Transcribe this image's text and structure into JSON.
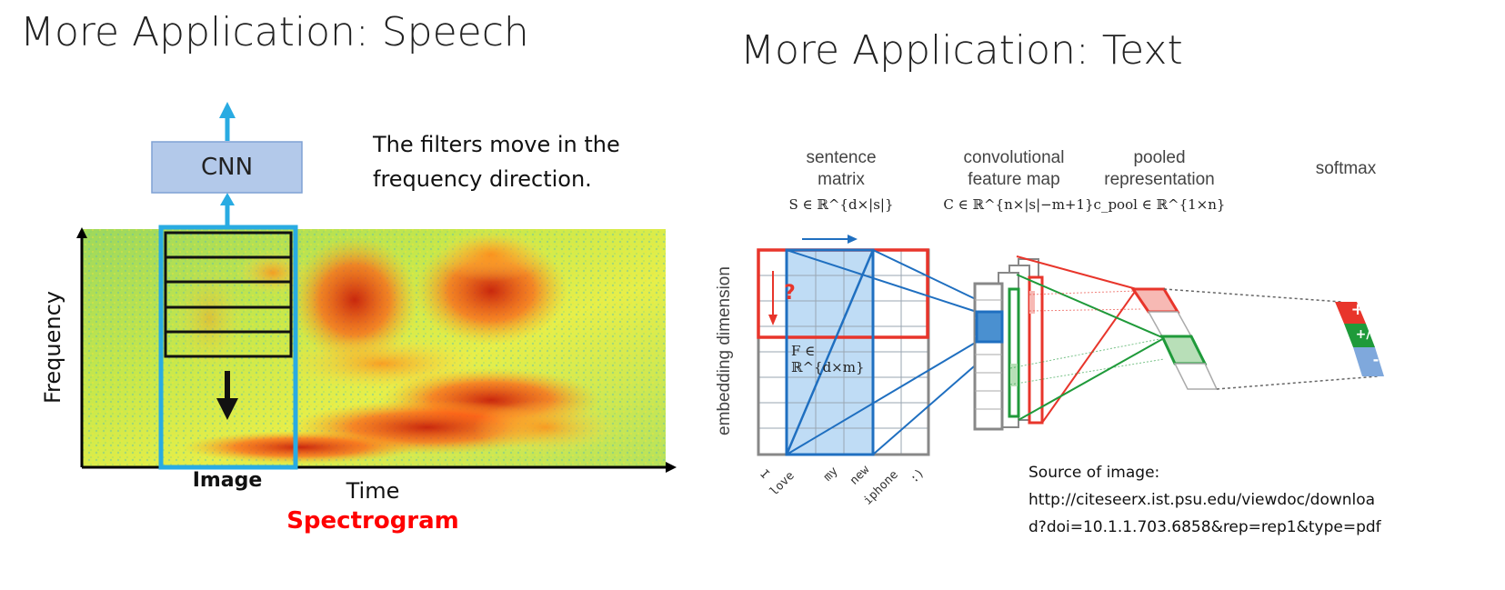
{
  "left": {
    "title": "More Application: Speech",
    "cnn_label": "CNN",
    "note_line1": "The filters move in the",
    "note_line2": "frequency direction.",
    "y_axis_label": "Frequency",
    "image_label": "Image",
    "x_axis_label": "Time",
    "spectrogram_label": "Spectrogram",
    "colors": {
      "highlight": "#29abe2",
      "arrow": "#29abe2",
      "spectrogram_label": "#ff0000",
      "cnn_box": "#b3c9ea"
    }
  },
  "right": {
    "title": "More Application: Text",
    "headers": {
      "sentence_matrix_1": "sentence",
      "sentence_matrix_2": "matrix",
      "sentence_math": "S ∈ ℝ^{d×|s|}",
      "conv_1": "convolutional",
      "conv_2": "feature map",
      "conv_math": "C ∈ ℝ^{n×|s|−m+1}",
      "pooled_1": "pooled",
      "pooled_2": "representation",
      "pooled_math": "c_pool ∈ ℝ^{1×n}",
      "softmax": "softmax"
    },
    "embedding_label": "embedding dimension",
    "filter_math": "F ∈ ℝ^{d×m}",
    "question_mark": "?",
    "words": [
      "I",
      "love",
      "my",
      "new",
      "iphone",
      ":)"
    ],
    "softmax_classes": [
      "+",
      "+/-",
      "-"
    ],
    "source_line1": "Source of image:",
    "source_line2": "http://citeseerx.ist.psu.edu/viewdoc/downloa",
    "source_line3": "d?doi=10.1.1.703.6858&rep=rep1&type=pdf",
    "colors": {
      "filter_red": "#e8352b",
      "filter_blue": "#1f6fc0",
      "filter_green": "#1f9a3a",
      "cell_fill": "#bfdcf5"
    }
  }
}
